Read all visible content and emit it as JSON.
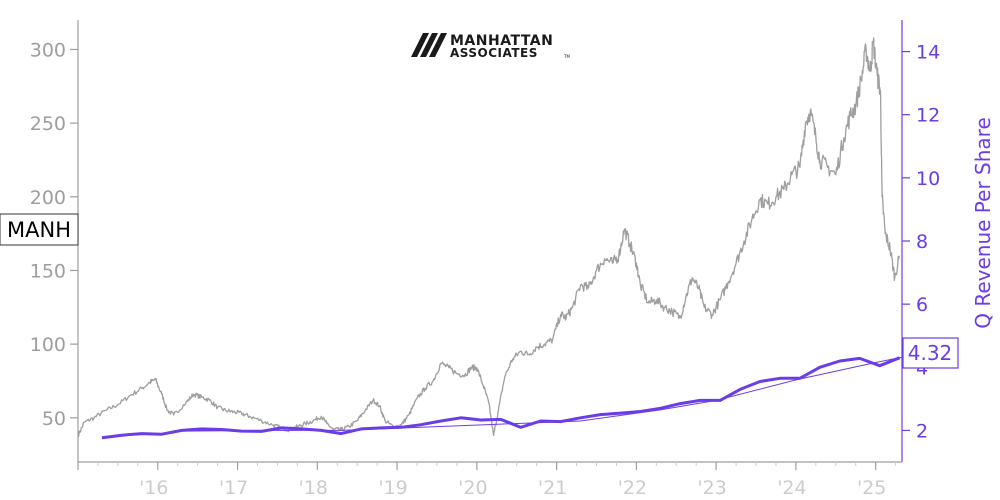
{
  "chart_data": {
    "type": "line",
    "ticker": "MANH",
    "logo": {
      "line1": "MANHATTAN",
      "line2": "ASSOCIATES",
      "trademark": "TM"
    },
    "x_tick_labels": [
      "'16",
      "'17",
      "'18",
      "'19",
      "'20",
      "'21",
      "'22",
      "'23",
      "'24",
      "'25"
    ],
    "y_left": {
      "ticks": [
        50,
        100,
        150,
        200,
        250,
        300
      ],
      "range": [
        20,
        320
      ],
      "color": "#9e9e9e"
    },
    "y_right": {
      "label": "Q Revenue Per Share",
      "ticks": [
        2,
        4,
        6,
        8,
        10,
        12,
        14
      ],
      "tick_labels": [
        "2",
        "4",
        "6",
        "8",
        "10",
        "12",
        "14"
      ],
      "range": [
        1,
        15
      ],
      "color": "#6a3de8"
    },
    "last_value_label": "4.32",
    "x_range": [
      2015.0,
      2025.33
    ],
    "price_series": {
      "name": "MANH",
      "color": "#9e9e9e",
      "points": [
        [
          2015.0,
          38
        ],
        [
          2015.08,
          47
        ],
        [
          2015.2,
          50
        ],
        [
          2015.35,
          55
        ],
        [
          2015.5,
          59
        ],
        [
          2015.65,
          65
        ],
        [
          2015.8,
          70
        ],
        [
          2015.9,
          74
        ],
        [
          2015.97,
          76
        ],
        [
          2016.05,
          66
        ],
        [
          2016.12,
          55
        ],
        [
          2016.2,
          52
        ],
        [
          2016.35,
          60
        ],
        [
          2016.45,
          66
        ],
        [
          2016.55,
          64
        ],
        [
          2016.65,
          62
        ],
        [
          2016.75,
          57
        ],
        [
          2016.85,
          55
        ],
        [
          2016.95,
          54
        ],
        [
          2017.05,
          53
        ],
        [
          2017.15,
          51
        ],
        [
          2017.3,
          48
        ],
        [
          2017.45,
          45
        ],
        [
          2017.55,
          43
        ],
        [
          2017.65,
          42
        ],
        [
          2017.75,
          44
        ],
        [
          2017.85,
          46
        ],
        [
          2017.95,
          48
        ],
        [
          2018.05,
          51
        ],
        [
          2018.12,
          46
        ],
        [
          2018.2,
          42
        ],
        [
          2018.3,
          42
        ],
        [
          2018.4,
          44
        ],
        [
          2018.5,
          48
        ],
        [
          2018.6,
          55
        ],
        [
          2018.7,
          62
        ],
        [
          2018.78,
          58
        ],
        [
          2018.85,
          48
        ],
        [
          2018.95,
          44
        ],
        [
          2019.05,
          45
        ],
        [
          2019.15,
          52
        ],
        [
          2019.25,
          63
        ],
        [
          2019.35,
          70
        ],
        [
          2019.45,
          75
        ],
        [
          2019.55,
          87
        ],
        [
          2019.65,
          84
        ],
        [
          2019.75,
          80
        ],
        [
          2019.85,
          79
        ],
        [
          2019.93,
          84
        ],
        [
          2020.0,
          84
        ],
        [
          2020.08,
          72
        ],
        [
          2020.15,
          60
        ],
        [
          2020.21,
          38
        ],
        [
          2020.27,
          55
        ],
        [
          2020.35,
          78
        ],
        [
          2020.45,
          90
        ],
        [
          2020.55,
          95
        ],
        [
          2020.65,
          93
        ],
        [
          2020.75,
          98
        ],
        [
          2020.85,
          100
        ],
        [
          2020.95,
          103
        ],
        [
          2021.05,
          120
        ],
        [
          2021.12,
          118
        ],
        [
          2021.2,
          125
        ],
        [
          2021.3,
          140
        ],
        [
          2021.4,
          138
        ],
        [
          2021.5,
          150
        ],
        [
          2021.6,
          158
        ],
        [
          2021.7,
          155
        ],
        [
          2021.78,
          160
        ],
        [
          2021.85,
          178
        ],
        [
          2021.92,
          168
        ],
        [
          2022.0,
          155
        ],
        [
          2022.05,
          140
        ],
        [
          2022.15,
          128
        ],
        [
          2022.25,
          130
        ],
        [
          2022.35,
          125
        ],
        [
          2022.45,
          122
        ],
        [
          2022.55,
          118
        ],
        [
          2022.62,
          132
        ],
        [
          2022.7,
          145
        ],
        [
          2022.78,
          138
        ],
        [
          2022.85,
          125
        ],
        [
          2022.95,
          120
        ],
        [
          2023.05,
          130
        ],
        [
          2023.15,
          142
        ],
        [
          2023.25,
          155
        ],
        [
          2023.35,
          170
        ],
        [
          2023.45,
          185
        ],
        [
          2023.55,
          198
        ],
        [
          2023.65,
          195
        ],
        [
          2023.75,
          200
        ],
        [
          2023.85,
          205
        ],
        [
          2023.95,
          215
        ],
        [
          2024.05,
          220
        ],
        [
          2024.12,
          250
        ],
        [
          2024.18,
          258
        ],
        [
          2024.25,
          240
        ],
        [
          2024.3,
          225
        ],
        [
          2024.4,
          220
        ],
        [
          2024.5,
          215
        ],
        [
          2024.6,
          240
        ],
        [
          2024.68,
          255
        ],
        [
          2024.75,
          262
        ],
        [
          2024.82,
          280
        ],
        [
          2024.88,
          300
        ],
        [
          2024.93,
          285
        ],
        [
          2024.97,
          305
        ],
        [
          2025.02,
          282
        ],
        [
          2025.06,
          272
        ],
        [
          2025.08,
          200
        ],
        [
          2025.12,
          175
        ],
        [
          2025.18,
          165
        ],
        [
          2025.24,
          145
        ],
        [
          2025.3,
          160
        ]
      ]
    },
    "revenue_series": {
      "name": "Q Revenue Per Share",
      "color": "#6a3de8",
      "points": [
        [
          2015.3,
          1.77
        ],
        [
          2015.55,
          1.85
        ],
        [
          2015.8,
          1.9
        ],
        [
          2016.05,
          1.88
        ],
        [
          2016.3,
          2.0
        ],
        [
          2016.55,
          2.05
        ],
        [
          2016.8,
          2.03
        ],
        [
          2017.05,
          1.98
        ],
        [
          2017.3,
          1.97
        ],
        [
          2017.55,
          2.08
        ],
        [
          2017.8,
          2.05
        ],
        [
          2018.05,
          2.0
        ],
        [
          2018.3,
          1.9
        ],
        [
          2018.55,
          2.05
        ],
        [
          2018.8,
          2.08
        ],
        [
          2019.05,
          2.1
        ],
        [
          2019.3,
          2.18
        ],
        [
          2019.55,
          2.3
        ],
        [
          2019.8,
          2.4
        ],
        [
          2020.05,
          2.33
        ],
        [
          2020.3,
          2.35
        ],
        [
          2020.55,
          2.1
        ],
        [
          2020.8,
          2.3
        ],
        [
          2021.05,
          2.28
        ],
        [
          2021.3,
          2.4
        ],
        [
          2021.55,
          2.5
        ],
        [
          2021.8,
          2.55
        ],
        [
          2022.05,
          2.6
        ],
        [
          2022.3,
          2.7
        ],
        [
          2022.55,
          2.85
        ],
        [
          2022.8,
          2.95
        ],
        [
          2023.05,
          2.95
        ],
        [
          2023.3,
          3.3
        ],
        [
          2023.55,
          3.55
        ],
        [
          2023.8,
          3.65
        ],
        [
          2024.05,
          3.65
        ],
        [
          2024.3,
          4.0
        ],
        [
          2024.55,
          4.2
        ],
        [
          2024.8,
          4.28
        ],
        [
          2025.05,
          4.05
        ],
        [
          2025.3,
          4.3
        ]
      ]
    },
    "revenue_trend": {
      "color": "#6a3de8",
      "points": [
        [
          2016.3,
          1.98
        ],
        [
          2017.3,
          2.0
        ],
        [
          2018.3,
          2.0
        ],
        [
          2019.3,
          2.1
        ],
        [
          2020.3,
          2.2
        ],
        [
          2021.3,
          2.3
        ],
        [
          2022.3,
          2.65
        ],
        [
          2023.0,
          2.95
        ],
        [
          2024.0,
          3.6
        ],
        [
          2025.0,
          4.15
        ],
        [
          2025.33,
          4.32
        ]
      ]
    }
  }
}
